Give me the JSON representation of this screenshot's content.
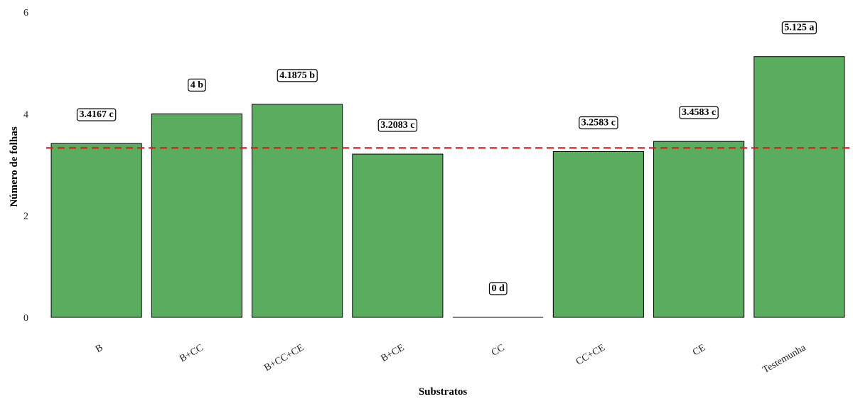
{
  "chart_data": {
    "type": "bar",
    "title": "",
    "xlabel": "Substratos",
    "ylabel": "Número de folhas",
    "categories": [
      "B",
      "B+CC",
      "B+CC+CE",
      "B+CE",
      "CC",
      "CC+CE",
      "CE",
      "Testemunha"
    ],
    "values": [
      3.4167,
      4,
      4.1875,
      3.2083,
      0,
      3.2583,
      3.4583,
      5.125
    ],
    "data_labels": [
      "3.4167 c",
      "4 b",
      "4.1875 b",
      "3.2083 c",
      "0 d",
      "3.2583 c",
      "3.4583 c",
      "5.125 a"
    ],
    "ylim": [
      0,
      6
    ],
    "yticks": [
      "0",
      "2",
      "4",
      "6"
    ],
    "reference_line": {
      "value": 3.33,
      "style": "dashed",
      "color": "#e41a1c"
    },
    "bar_color": "#5aad5f",
    "bar_border_color": "#000000",
    "grid": false,
    "legend": "none"
  }
}
